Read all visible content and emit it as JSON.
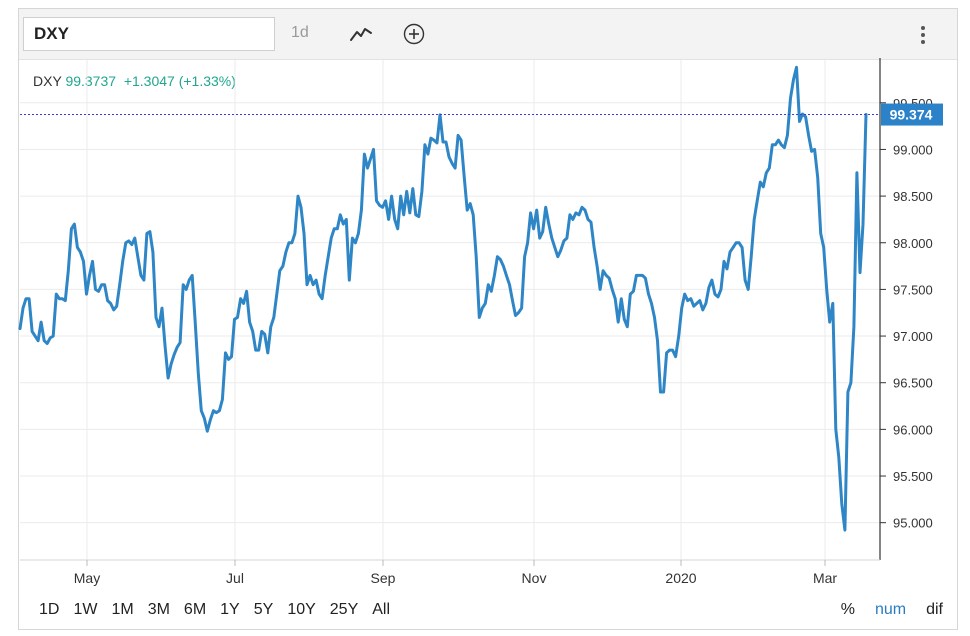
{
  "toolbar": {
    "symbol": "DXY",
    "interval": "1d",
    "icons": [
      "line-chart-icon",
      "add-circle-icon",
      "more-vertical-icon"
    ]
  },
  "legend": {
    "symbol": "DXY",
    "price": "99.3737",
    "change": "+1.3047",
    "change_pct": "(+1.33%)"
  },
  "price_badge": "99.374",
  "range_buttons": [
    "1D",
    "1W",
    "1M",
    "3M",
    "6M",
    "1Y",
    "5Y",
    "10Y",
    "25Y",
    "All"
  ],
  "mode_buttons": [
    {
      "label": "%",
      "active": false
    },
    {
      "label": "num",
      "active": true
    },
    {
      "label": "dif",
      "active": false
    }
  ],
  "colors": {
    "line": "#2e86c6",
    "up": "#21a68f",
    "badge": "#2b82c9"
  },
  "chart_data": {
    "type": "line",
    "x_tick_labels": [
      "May",
      "Jul",
      "Sep",
      "Nov",
      "2020",
      "Mar"
    ],
    "y_tick_labels": [
      "95.000",
      "95.500",
      "96.000",
      "96.500",
      "97.000",
      "97.500",
      "98.000",
      "98.500",
      "99.000",
      "99.500"
    ],
    "ylim": [
      94.6,
      99.98
    ],
    "y_ticks": [
      95.0,
      95.5,
      96.0,
      96.5,
      97.0,
      97.5,
      98.0,
      98.5,
      99.0,
      99.5
    ],
    "last_value": 99.374,
    "grid": true,
    "series": [
      {
        "values": [
          97.08,
          97.3,
          97.4,
          97.4,
          97.05,
          97.0,
          96.95,
          97.15,
          96.95,
          96.92,
          96.98,
          97.0,
          97.45,
          97.4,
          97.4,
          97.38,
          97.7,
          98.15,
          98.2,
          97.95,
          97.9,
          97.8,
          97.45,
          97.65,
          97.8,
          97.5,
          97.48,
          97.55,
          97.55,
          97.38,
          97.35,
          97.28,
          97.32,
          97.55,
          97.8,
          98.0,
          98.02,
          97.98,
          98.05,
          97.85,
          97.65,
          97.6,
          98.1,
          98.12,
          97.9,
          97.2,
          97.1,
          97.3,
          96.9,
          96.55,
          96.7,
          96.8,
          96.88,
          96.93,
          97.55,
          97.5,
          97.6,
          97.65,
          97.15,
          96.6,
          96.2,
          96.12,
          95.98,
          96.1,
          96.2,
          96.18,
          96.2,
          96.32,
          96.82,
          96.75,
          96.78,
          97.18,
          97.2,
          97.4,
          97.35,
          97.48,
          97.15,
          97.05,
          96.85,
          96.85,
          97.05,
          97.02,
          96.82,
          97.1,
          97.2,
          97.45,
          97.7,
          97.75,
          97.9,
          98.0,
          98.0,
          98.1,
          98.5,
          98.38,
          98.1,
          97.55,
          97.65,
          97.55,
          97.6,
          97.45,
          97.4,
          97.65,
          97.85,
          98.05,
          98.15,
          98.15,
          98.3,
          98.2,
          98.25,
          97.6,
          98.05,
          98.0,
          98.1,
          98.35,
          98.95,
          98.8,
          98.9,
          99.0,
          98.45,
          98.4,
          98.38,
          98.45,
          98.25,
          98.5,
          98.25,
          98.15,
          98.5,
          98.3,
          98.55,
          98.32,
          98.58,
          98.3,
          98.28,
          98.55,
          99.05,
          98.95,
          99.12,
          99.1,
          99.07,
          99.37,
          99.08,
          99.08,
          98.92,
          98.85,
          98.8,
          99.15,
          99.1,
          98.72,
          98.35,
          98.42,
          98.3,
          97.85,
          97.2,
          97.3,
          97.35,
          97.55,
          97.48,
          97.65,
          97.85,
          97.82,
          97.75,
          97.65,
          97.55,
          97.38,
          97.22,
          97.25,
          97.3,
          97.85,
          98.0,
          98.32,
          98.15,
          98.35,
          98.05,
          98.12,
          98.38,
          98.2,
          98.05,
          97.95,
          97.85,
          97.92,
          98.02,
          98.05,
          98.3,
          98.25,
          98.32,
          98.3,
          98.38,
          98.35,
          98.25,
          98.22,
          97.95,
          97.75,
          97.5,
          97.7,
          97.65,
          97.62,
          97.5,
          97.4,
          97.15,
          97.4,
          97.18,
          97.1,
          97.45,
          97.48,
          97.65,
          97.65,
          97.65,
          97.62,
          97.45,
          97.35,
          97.2,
          96.95,
          96.4,
          96.4,
          96.82,
          96.85,
          96.85,
          96.78,
          97.0,
          97.3,
          97.45,
          97.38,
          97.4,
          97.32,
          97.35,
          97.38,
          97.28,
          97.35,
          97.52,
          97.6,
          97.45,
          97.42,
          97.5,
          97.8,
          97.72,
          97.9,
          97.95,
          98.0,
          98.0,
          97.95,
          97.6,
          97.5,
          97.85,
          98.25,
          98.45,
          98.65,
          98.6,
          98.75,
          98.8,
          99.05,
          99.05,
          99.1,
          99.05,
          99.02,
          99.15,
          99.55,
          99.75,
          99.88,
          99.3,
          99.38,
          99.35,
          99.15,
          98.98,
          99.0,
          98.7,
          98.1,
          97.95,
          97.5,
          97.15,
          97.35,
          96.0,
          95.7,
          95.2,
          94.92,
          96.4,
          96.5,
          97.1,
          98.75,
          97.68,
          98.2,
          99.374
        ]
      }
    ]
  }
}
